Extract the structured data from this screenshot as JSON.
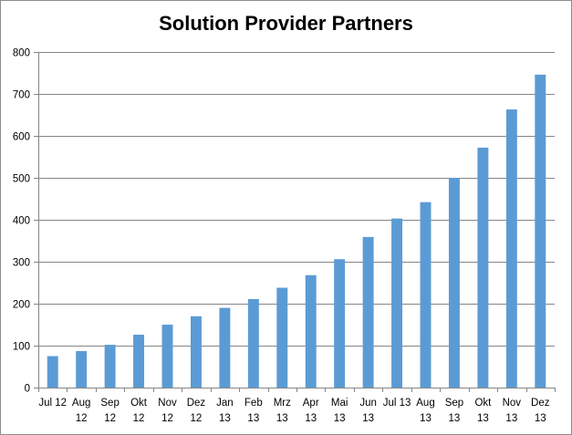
{
  "chart_data": {
    "type": "bar",
    "title": "Solution Provider Partners",
    "categories": [
      [
        "Jul 12"
      ],
      [
        "Aug",
        "12"
      ],
      [
        "Sep",
        "12"
      ],
      [
        "Okt",
        "12"
      ],
      [
        "Nov",
        "12"
      ],
      [
        "Dez",
        "12"
      ],
      [
        "Jan",
        "13"
      ],
      [
        "Feb",
        "13"
      ],
      [
        "Mrz",
        "13"
      ],
      [
        "Apr",
        "13"
      ],
      [
        "Mai",
        "13"
      ],
      [
        "Jun",
        "13"
      ],
      [
        "Jul 13"
      ],
      [
        "Aug",
        "13"
      ],
      [
        "Sep",
        "13"
      ],
      [
        "Okt",
        "13"
      ],
      [
        "Nov",
        "13"
      ],
      [
        "Dez",
        "13"
      ]
    ],
    "values": [
      75,
      87,
      102,
      126,
      150,
      170,
      190,
      211,
      238,
      268,
      306,
      359,
      403,
      442,
      500,
      572,
      663,
      746
    ],
    "ylim": [
      0,
      800
    ],
    "yticks": [
      0,
      100,
      200,
      300,
      400,
      500,
      600,
      700,
      800
    ],
    "xlabel": "",
    "ylabel": "",
    "grid": true,
    "legend": "none",
    "bar_color": "#5b9bd5",
    "grid_color": "#868686"
  }
}
